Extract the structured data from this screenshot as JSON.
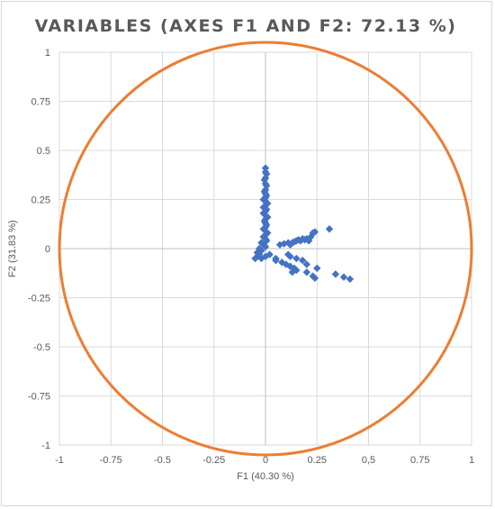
{
  "chart_data": {
    "type": "scatter",
    "title": "VARIABLES (AXES F1 AND F2: 72.13 %)",
    "xlabel": "F1 (40.30 %)",
    "ylabel": "F2 (31.83 %)",
    "xlim": [
      -1,
      1
    ],
    "ylim": [
      -1,
      1
    ],
    "xticks": [
      "-1",
      "-0.75",
      "-0.5",
      "-0.25",
      "0",
      "0.25",
      "0,5",
      "0.75",
      "1"
    ],
    "yticks": [
      "1",
      "0.75",
      "0.5",
      "0.25",
      "0",
      "-0.25",
      "-0.5",
      "-0.75",
      "-1"
    ],
    "grid": true,
    "legend": "none",
    "marker_color": "#4472c4",
    "circle_color": "#ed7d31",
    "circle_radius": 1,
    "points": [
      [
        0.0,
        0.41
      ],
      [
        0.0,
        0.39
      ],
      [
        0.005,
        0.38
      ],
      [
        0.0,
        0.36
      ],
      [
        -0.005,
        0.35
      ],
      [
        0.0,
        0.33
      ],
      [
        0.005,
        0.32
      ],
      [
        0.0,
        0.3
      ],
      [
        -0.005,
        0.29
      ],
      [
        0.0,
        0.28
      ],
      [
        0.005,
        0.27
      ],
      [
        0.0,
        0.26
      ],
      [
        -0.01,
        0.25
      ],
      [
        0.0,
        0.24
      ],
      [
        0.01,
        0.23
      ],
      [
        0.0,
        0.22
      ],
      [
        -0.01,
        0.21
      ],
      [
        0.005,
        0.2
      ],
      [
        0.0,
        0.19
      ],
      [
        -0.01,
        0.18
      ],
      [
        0.0,
        0.17
      ],
      [
        0.01,
        0.16
      ],
      [
        0.0,
        0.15
      ],
      [
        -0.005,
        0.14
      ],
      [
        0.0,
        0.13
      ],
      [
        0.005,
        0.12
      ],
      [
        0.0,
        0.11
      ],
      [
        -0.01,
        0.1
      ],
      [
        0.0,
        0.09
      ],
      [
        0.01,
        0.08
      ],
      [
        0.0,
        0.07
      ],
      [
        -0.01,
        0.06
      ],
      [
        0.0,
        0.05
      ],
      [
        0.005,
        0.04
      ],
      [
        -0.02,
        0.03
      ],
      [
        -0.01,
        0.02
      ],
      [
        0.0,
        0.01
      ],
      [
        -0.03,
        0.0
      ],
      [
        -0.02,
        -0.01
      ],
      [
        -0.04,
        -0.02
      ],
      [
        -0.03,
        -0.03
      ],
      [
        -0.04,
        -0.04
      ],
      [
        -0.05,
        -0.05
      ],
      [
        -0.02,
        -0.05
      ],
      [
        0.0,
        -0.04
      ],
      [
        0.02,
        -0.03
      ],
      [
        0.05,
        -0.05
      ],
      [
        0.07,
        0.02
      ],
      [
        0.09,
        0.025
      ],
      [
        0.11,
        0.03
      ],
      [
        0.12,
        0.02
      ],
      [
        0.13,
        0.03
      ],
      [
        0.14,
        0.035
      ],
      [
        0.15,
        0.04
      ],
      [
        0.16,
        0.045
      ],
      [
        0.17,
        0.04
      ],
      [
        0.18,
        0.05
      ],
      [
        0.19,
        0.045
      ],
      [
        0.2,
        0.05
      ],
      [
        0.21,
        0.04
      ],
      [
        0.22,
        0.06
      ],
      [
        0.23,
        0.08
      ],
      [
        0.24,
        0.085
      ],
      [
        0.31,
        0.1
      ],
      [
        0.05,
        -0.06
      ],
      [
        0.08,
        -0.07
      ],
      [
        0.1,
        -0.08
      ],
      [
        0.12,
        -0.09
      ],
      [
        0.14,
        -0.1
      ],
      [
        0.15,
        -0.11
      ],
      [
        0.13,
        -0.12
      ],
      [
        0.2,
        -0.12
      ],
      [
        0.23,
        -0.14
      ],
      [
        0.24,
        -0.15
      ],
      [
        0.34,
        -0.13
      ],
      [
        0.38,
        -0.145
      ],
      [
        0.41,
        -0.155
      ],
      [
        0.12,
        -0.04
      ],
      [
        0.15,
        -0.05
      ],
      [
        0.18,
        -0.06
      ],
      [
        0.2,
        -0.08
      ],
      [
        0.25,
        -0.1
      ],
      [
        0.11,
        -0.03
      ]
    ]
  }
}
